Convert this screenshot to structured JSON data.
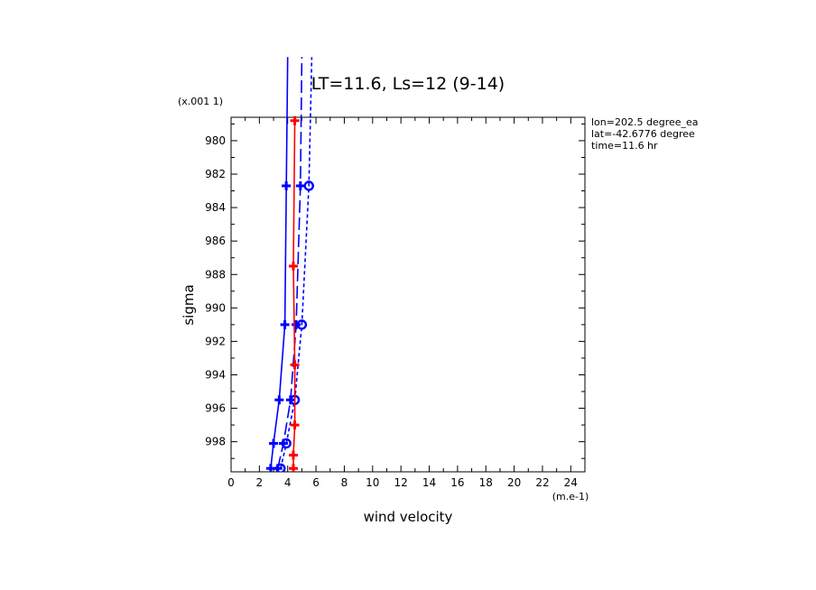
{
  "chart_data": {
    "type": "line",
    "title": "LT=11.6, Ls=12 (9-14)",
    "xlabel": "wind velocity",
    "xunit": "(m.e-1)",
    "ylabel": "sigma",
    "yunit": "(x.001 1)",
    "xlim": [
      0,
      25
    ],
    "ylim": [
      999.8,
      978.6
    ],
    "y_inverted": true,
    "grid": false,
    "x_ticks": [
      "0",
      "2",
      "4",
      "6",
      "8",
      "10",
      "12",
      "14",
      "16",
      "18",
      "20",
      "22",
      "24"
    ],
    "y_ticks": [
      "980",
      "982",
      "984",
      "986",
      "988",
      "990",
      "992",
      "994",
      "996",
      "998"
    ],
    "annotations": [
      "lon=202.5 degree_ea",
      "lat=-42.6776 degree",
      "time=11.6 hr"
    ],
    "series": [
      {
        "color": "#0000ff",
        "style": "solid",
        "marker": "plus",
        "points": [
          [
            2.8,
            999.6
          ],
          [
            3.0,
            998.1
          ],
          [
            3.4,
            995.5
          ],
          [
            3.8,
            991.0
          ],
          [
            3.9,
            982.7
          ],
          [
            4.0,
            975.0
          ]
        ]
      },
      {
        "color": "#0000ff",
        "style": "dashed-long",
        "marker": "plus",
        "points": [
          [
            3.3,
            999.6
          ],
          [
            3.7,
            998.1
          ],
          [
            4.2,
            995.5
          ],
          [
            4.6,
            991.0
          ],
          [
            4.9,
            982.7
          ],
          [
            5.0,
            975.0
          ]
        ]
      },
      {
        "color": "#0000ff",
        "style": "dashed",
        "marker": "circle",
        "points": [
          [
            3.5,
            999.6
          ],
          [
            3.9,
            998.1
          ],
          [
            4.5,
            995.5
          ],
          [
            5.0,
            991.0
          ],
          [
            5.5,
            982.7
          ],
          [
            5.7,
            975.0
          ]
        ]
      },
      {
        "color": "#ff0000",
        "style": "solid",
        "marker": "plus",
        "points": [
          [
            4.4,
            999.6
          ],
          [
            4.4,
            998.8
          ],
          [
            4.5,
            997.0
          ],
          [
            4.5,
            993.4
          ],
          [
            4.4,
            987.5
          ],
          [
            4.5,
            978.8
          ]
        ]
      }
    ]
  }
}
